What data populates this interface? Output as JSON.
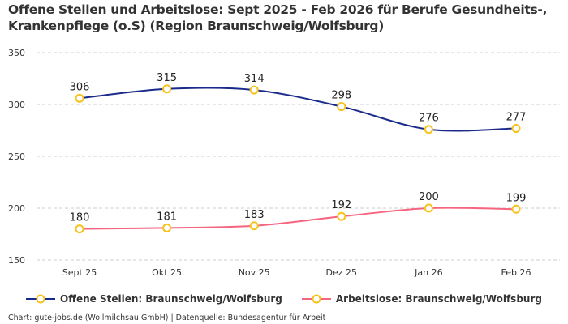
{
  "title": "Offene Stellen und Arbeitslose: Sept 2025 - Feb 2026 für Berufe Gesundheits-, Krankenpflege (o.S) (Region Braunschweig/Wolfsburg)",
  "footer": "Chart: gute-jobs.de (Wollmilchsau GmbH) | Datenquelle: Bundesagentur für Arbeit",
  "chart_data": {
    "type": "line",
    "categories": [
      "Sept 25",
      "Okt 25",
      "Nov 25",
      "Dez 25",
      "Jan 26",
      "Feb 26"
    ],
    "ylim": [
      150,
      350
    ],
    "yticks": [
      150,
      200,
      250,
      300,
      350
    ],
    "grid": true,
    "legend_position": "bottom",
    "series": [
      {
        "name": "Offene Stellen: Braunschweig/Wolfsburg",
        "values": [
          306,
          315,
          314,
          298,
          276,
          277
        ],
        "color": "#1a2a8a"
      },
      {
        "name": "Arbeitslose: Braunschweig/Wolfsburg",
        "values": [
          180,
          181,
          183,
          192,
          200,
          199
        ],
        "color": "#f5657f"
      }
    ],
    "marker_color": "#f7c21b"
  }
}
